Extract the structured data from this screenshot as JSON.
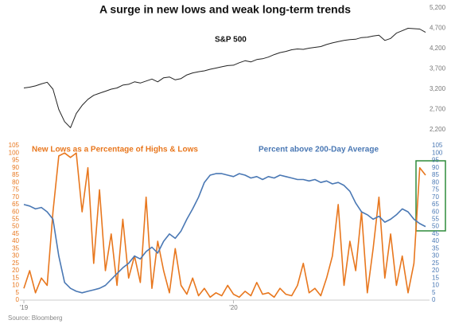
{
  "source": "Source: Bloomberg",
  "chart_data": [
    {
      "type": "line",
      "title": "A surge in new lows and weak long-term trends",
      "ylim": [
        2200,
        5200
      ],
      "yticks": [
        {
          "value": 2200,
          "label": "2,200"
        },
        {
          "value": 2700,
          "label": "2,700"
        },
        {
          "value": 3200,
          "label": "3,200"
        },
        {
          "value": 3700,
          "label": "3,700"
        },
        {
          "value": 4200,
          "label": "4,200"
        },
        {
          "value": 4700,
          "label": "4,700"
        },
        {
          "value": 5200,
          "label": "5,200"
        }
      ],
      "series": [
        {
          "name": "S&P 500",
          "color": "#222222",
          "values": [
            3230,
            3250,
            3280,
            3330,
            3370,
            3200,
            2700,
            2400,
            2250,
            2600,
            2800,
            2950,
            3050,
            3100,
            3150,
            3200,
            3230,
            3300,
            3320,
            3380,
            3350,
            3400,
            3450,
            3380,
            3480,
            3500,
            3430,
            3460,
            3550,
            3600,
            3630,
            3650,
            3690,
            3720,
            3750,
            3780,
            3790,
            3850,
            3900,
            3870,
            3930,
            3950,
            3990,
            4050,
            4100,
            4130,
            4170,
            4190,
            4180,
            4210,
            4230,
            4250,
            4300,
            4340,
            4370,
            4400,
            4420,
            4430,
            4470,
            4480,
            4510,
            4530,
            4400,
            4450,
            4580,
            4640,
            4700,
            4690,
            4680,
            4600
          ]
        }
      ]
    },
    {
      "type": "line",
      "categories": [
        "'19",
        null,
        null,
        null,
        null,
        null,
        null,
        null,
        null,
        null,
        null,
        null,
        null,
        null,
        null,
        null,
        null,
        null,
        null,
        null,
        null,
        null,
        null,
        null,
        null,
        null,
        null,
        null,
        null,
        null,
        null,
        null,
        null,
        null,
        null,
        null,
        "'20",
        null,
        null,
        null,
        null,
        null,
        null,
        null,
        null,
        null,
        null,
        null,
        null,
        null,
        null,
        null,
        null,
        null,
        null,
        null,
        null,
        null,
        null,
        null,
        null,
        null,
        null,
        null,
        null,
        null,
        null,
        null,
        null,
        null
      ],
      "ylim": [
        0,
        105
      ],
      "yticks": [
        0,
        5,
        10,
        15,
        20,
        25,
        30,
        35,
        40,
        45,
        50,
        55,
        60,
        65,
        70,
        75,
        80,
        85,
        90,
        95,
        100,
        105
      ],
      "y2lim": [
        0,
        105
      ],
      "y2ticks": [
        0,
        5,
        10,
        15,
        20,
        25,
        30,
        35,
        40,
        45,
        50,
        55,
        60,
        65,
        70,
        75,
        80,
        85,
        90,
        95,
        100,
        105
      ],
      "series": [
        {
          "name": "New Lows as a Percentage of Highs & Lows",
          "color": "#e8771e",
          "values": [
            8,
            20,
            5,
            15,
            10,
            60,
            98,
            100,
            97,
            100,
            60,
            90,
            25,
            75,
            20,
            45,
            10,
            55,
            15,
            30,
            12,
            70,
            8,
            40,
            20,
            5,
            35,
            10,
            4,
            15,
            3,
            8,
            2,
            5,
            3,
            10,
            4,
            2,
            6,
            3,
            12,
            4,
            5,
            2,
            8,
            4,
            3,
            10,
            25,
            5,
            8,
            3,
            15,
            30,
            65,
            10,
            40,
            20,
            60,
            5,
            35,
            70,
            15,
            45,
            10,
            30,
            5,
            25,
            90,
            85
          ]
        },
        {
          "name": "Percent above 200-Day Average",
          "color": "#4a78b4",
          "axis": "y2",
          "values": [
            65,
            64,
            62,
            63,
            60,
            55,
            30,
            12,
            8,
            6,
            5,
            6,
            7,
            8,
            10,
            14,
            18,
            22,
            25,
            30,
            28,
            33,
            36,
            32,
            40,
            45,
            42,
            47,
            55,
            62,
            70,
            80,
            85,
            86,
            86,
            85,
            84,
            86,
            85,
            83,
            84,
            82,
            84,
            83,
            85,
            84,
            83,
            82,
            82,
            81,
            82,
            80,
            81,
            79,
            80,
            78,
            74,
            66,
            60,
            58,
            55,
            57,
            53,
            55,
            58,
            62,
            60,
            55,
            52,
            50
          ]
        }
      ]
    }
  ]
}
